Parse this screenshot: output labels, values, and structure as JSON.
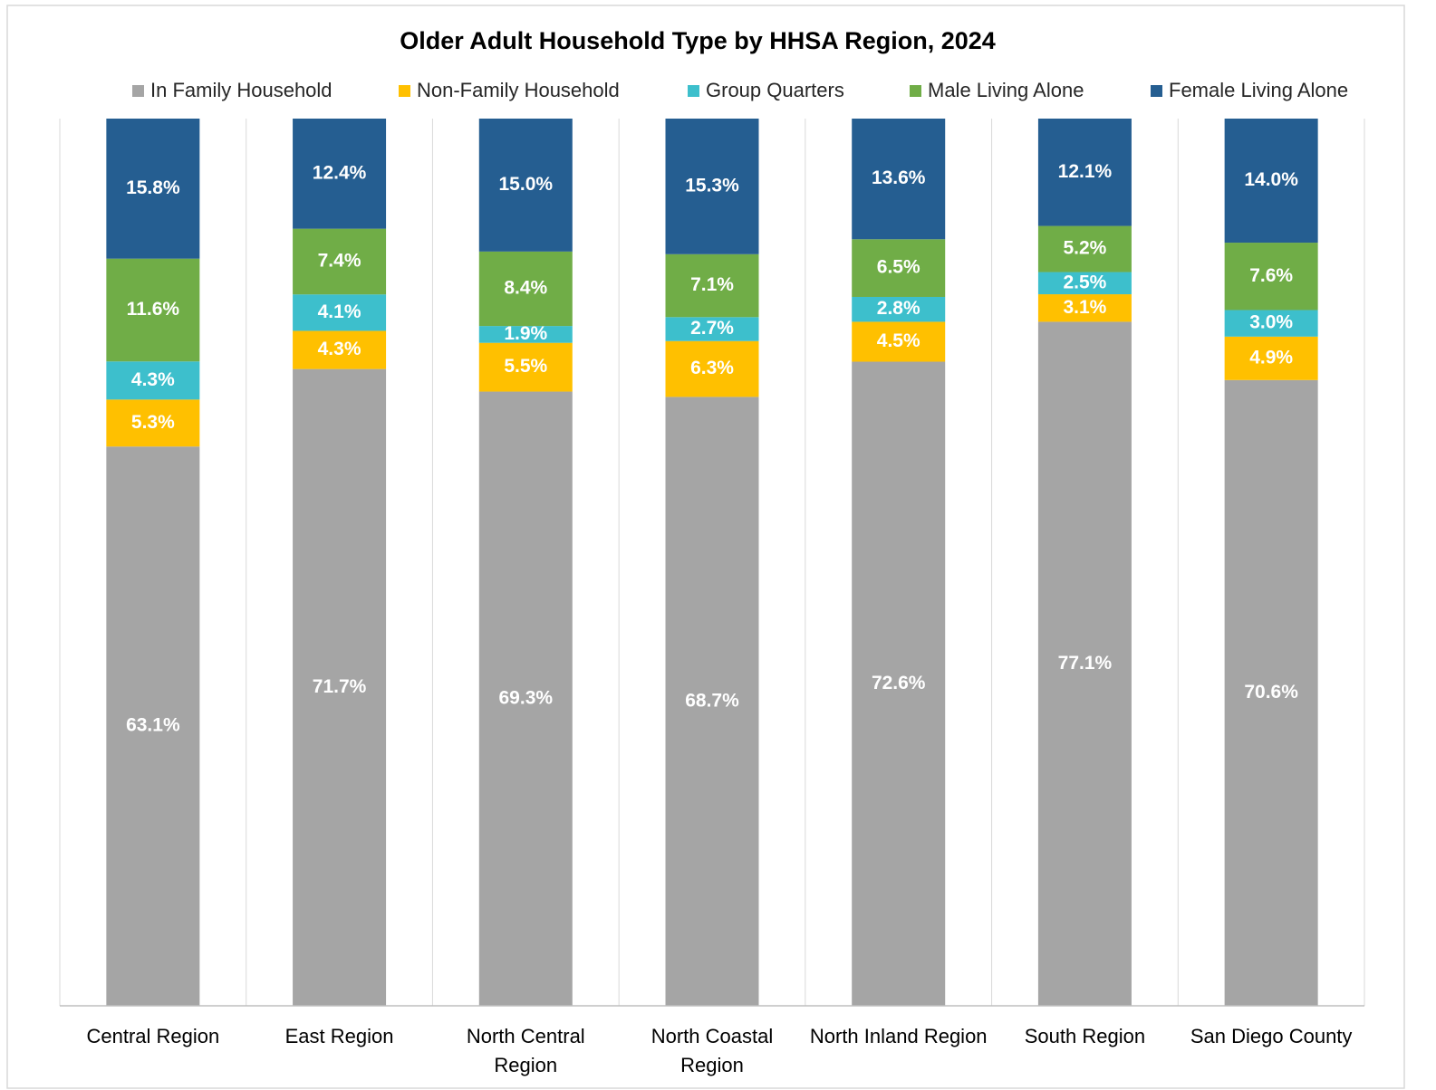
{
  "chart_data": {
    "type": "bar",
    "stacked": "percent",
    "title": "Older Adult Household Type by HHSA Region, 2024",
    "categories": [
      "Central Region",
      "East Region",
      "North Central Region",
      "North Coastal Region",
      "North Inland Region",
      "South Region",
      "San Diego County"
    ],
    "series": [
      {
        "name": "In Family Household",
        "color": "#a5a5a5",
        "values": [
          63.1,
          71.7,
          69.3,
          68.7,
          72.6,
          77.1,
          70.6
        ],
        "value_labels": [
          "63.1%",
          "71.7%",
          "69.3%",
          "68.7%",
          "72.6%",
          "77.1%",
          "70.6%"
        ]
      },
      {
        "name": "Non-Family Household",
        "color": "#ffc000",
        "values": [
          5.3,
          4.3,
          5.5,
          6.3,
          4.5,
          3.1,
          4.9
        ],
        "value_labels": [
          "5.3%",
          "4.3%",
          "5.5%",
          "6.3%",
          "4.5%",
          "3.1%",
          "4.9%"
        ]
      },
      {
        "name": "Group Quarters",
        "color": "#3dbfcc",
        "values": [
          4.3,
          4.1,
          1.9,
          2.7,
          2.8,
          2.5,
          3.0
        ],
        "value_labels": [
          "4.3%",
          "4.1%",
          "1.9%",
          "2.7%",
          "2.8%",
          "2.5%",
          "3.0%"
        ]
      },
      {
        "name": "Male Living Alone",
        "color": "#70ad47",
        "values": [
          11.6,
          7.4,
          8.4,
          7.1,
          6.5,
          5.2,
          7.6
        ],
        "value_labels": [
          "11.6%",
          "7.4%",
          "8.4%",
          "7.1%",
          "6.5%",
          "5.2%",
          "7.6%"
        ]
      },
      {
        "name": "Female Living Alone",
        "color": "#255e91",
        "values": [
          15.8,
          12.4,
          15.0,
          15.3,
          13.6,
          12.1,
          14.0
        ],
        "value_labels": [
          "15.8%",
          "12.4%",
          "15.0%",
          "15.3%",
          "13.6%",
          "12.1%",
          "14.0%"
        ]
      }
    ],
    "legend": "top",
    "grid": true
  }
}
